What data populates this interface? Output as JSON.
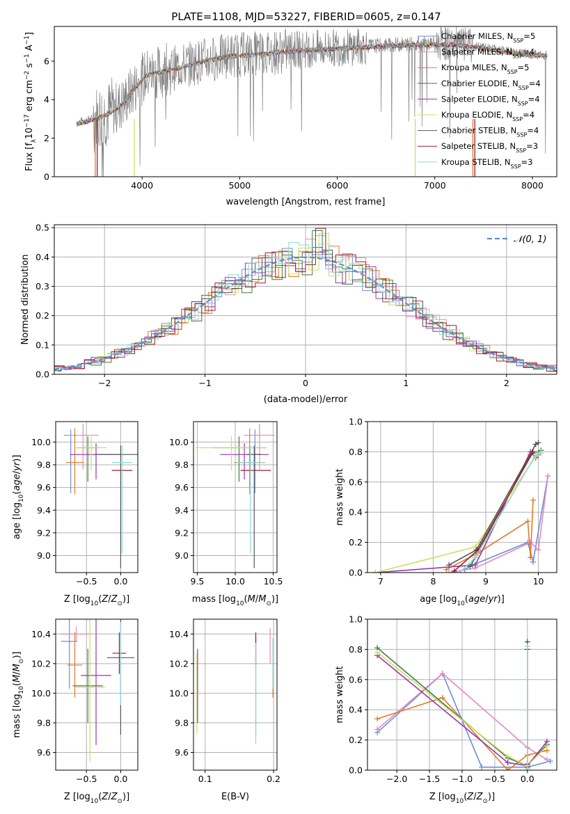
{
  "figure": {
    "title": "PLATE=1108, MJD=53227, FIBERID=0605, z=0.147"
  },
  "colors": {
    "cb_miles": "#6a8fdc",
    "sp_miles": "#e58ac0",
    "kr_miles": "#e07b2a",
    "cb_elodie": "#3f7a3f",
    "sp_elodie": "#9a35b0",
    "kr_elodie": "#c8e060",
    "cb_stelib": "#555555",
    "sp_stelib": "#9e1c2c",
    "kr_stelib": "#8fd8d8",
    "data_gray": "#7f7f7f",
    "gauss": "#5b8fd8",
    "grid": "#b0b0b0"
  },
  "chart_data": [
    {
      "id": "spectrum",
      "type": "line",
      "xlabel": "wavelength [Angstrom, rest frame]",
      "ylabel": "Flux [f$_\\lambda 10^{-17}$ erg cm$^{-2}$ s$^{-1}$ A$^{-1}$]",
      "xlim": [
        3100,
        8250
      ],
      "ylim": [
        0,
        7.8
      ],
      "xticks": [
        4000,
        5000,
        6000,
        7000,
        8000
      ],
      "yticks": [
        0,
        2,
        4,
        6
      ],
      "grid": false,
      "legend": {
        "placement": "top-right",
        "entries": [
          {
            "key": "cb_miles",
            "label": "Chabrier MILES, N",
            "sub": "SSP",
            "tail": "=5"
          },
          {
            "key": "sp_miles",
            "label": "Salpeter MILES, N",
            "sub": "SSP",
            "tail": "=4"
          },
          {
            "key": "kr_miles",
            "label": "Kroupa MILES, N",
            "sub": "SSP",
            "tail": "=5"
          },
          {
            "key": "cb_elodie",
            "label": "Chabrier ELODIE, N",
            "sub": "SSP",
            "tail": "=4"
          },
          {
            "key": "sp_elodie",
            "label": "Salpeter ELODIE, N",
            "sub": "SSP",
            "tail": "=4"
          },
          {
            "key": "kr_elodie",
            "label": "Kroupa ELODIE, N",
            "sub": "SSP",
            "tail": "=4"
          },
          {
            "key": "cb_stelib",
            "label": "Chabrier STELIB, N",
            "sub": "SSP",
            "tail": "=4"
          },
          {
            "key": "sp_stelib",
            "label": "Salpeter STELIB, N",
            "sub": "SSP",
            "tail": "=3"
          },
          {
            "key": "kr_stelib",
            "label": "Kroupa STELIB, N",
            "sub": "SSP",
            "tail": "=3"
          }
        ]
      },
      "continuum": [
        [
          3330,
          2.8
        ],
        [
          3500,
          3.0
        ],
        [
          3650,
          3.3
        ],
        [
          3800,
          3.8
        ],
        [
          3950,
          4.8
        ],
        [
          4050,
          5.3
        ],
        [
          4300,
          5.6
        ],
        [
          4600,
          6.0
        ],
        [
          4900,
          6.3
        ],
        [
          5200,
          6.4
        ],
        [
          5600,
          6.6
        ],
        [
          6000,
          6.7
        ],
        [
          6400,
          6.8
        ],
        [
          6800,
          6.9
        ],
        [
          7200,
          6.9
        ],
        [
          7500,
          6.7
        ],
        [
          7900,
          6.4
        ],
        [
          8150,
          6.3
        ]
      ],
      "noise_segments": [
        [
          3330,
          3500,
          0.25
        ],
        [
          3500,
          3700,
          1.8
        ],
        [
          3700,
          4300,
          1.4
        ],
        [
          4300,
          5500,
          1.2
        ],
        [
          5500,
          6300,
          1.0
        ],
        [
          6300,
          7000,
          0.4
        ],
        [
          7000,
          7400,
          0.9
        ],
        [
          7400,
          8150,
          0.25
        ]
      ]
    },
    {
      "id": "residuals",
      "type": "step",
      "xlabel": "(data-model)/error",
      "ylabel": "Normed distribution",
      "xlim": [
        -2.5,
        2.5
      ],
      "ylim": [
        0,
        0.51
      ],
      "xticks": [
        -2,
        -1,
        0,
        1,
        2
      ],
      "yticks": [
        0.0,
        0.1,
        0.2,
        0.3,
        0.4,
        0.5
      ],
      "grid": true,
      "legend": {
        "placement": "top-right",
        "entries": [
          {
            "label": "𝒩(0, 1)"
          }
        ]
      }
    },
    {
      "id": "age_vs_Z",
      "type": "scatter",
      "xlabel": "Z [log10(Z/Z☉)]",
      "ylabel": "age  [log10(age/yr)]",
      "xlim": [
        -0.95,
        0.25
      ],
      "ylim": [
        8.85,
        10.18
      ],
      "xticks": [
        -0.5,
        0.0
      ],
      "yticks": [
        9.0,
        9.2,
        9.4,
        9.6,
        9.8,
        10.0
      ],
      "grid": true,
      "points": [
        {
          "key": "cb_miles",
          "x": -0.73,
          "y": 10.06,
          "xerr": 0.1,
          "yerr": [
            0.51,
            0.05
          ]
        },
        {
          "key": "sp_miles",
          "x": -0.55,
          "y": 10.06,
          "xerr": 0.23,
          "yerr": [
            0.3,
            0.1
          ]
        },
        {
          "key": "kr_miles",
          "x": -0.67,
          "y": 9.82,
          "xerr": 0.13,
          "yerr": [
            0.28,
            0.3
          ]
        },
        {
          "key": "cb_elodie",
          "x": -0.48,
          "y": 9.95,
          "xerr": 0.17,
          "yerr": [
            0.3,
            0.1
          ]
        },
        {
          "key": "sp_elodie",
          "x": -0.36,
          "y": 9.89,
          "xerr": 0.38,
          "yerr": [
            0.22,
            0.1
          ]
        },
        {
          "key": "kr_elodie",
          "x": -0.43,
          "y": 9.95,
          "xerr": 0.22,
          "yerr": [
            0.2,
            0.1
          ]
        },
        {
          "key": "cb_stelib",
          "x": 0.0,
          "y": 9.89,
          "xerr": 0.38,
          "yerr": [
            1.0,
            0.08
          ]
        },
        {
          "key": "sp_stelib",
          "x": 0.02,
          "y": 9.75,
          "xerr": 0.15,
          "yerr": [
            0.0,
            0.0
          ]
        },
        {
          "key": "kr_stelib",
          "x": 0.02,
          "y": 9.82,
          "xerr": 0.15,
          "yerr": [
            0.8,
            0.15
          ]
        }
      ]
    },
    {
      "id": "age_vs_mass",
      "type": "scatter",
      "xlabel": "mass [log10(M/M☉)]",
      "ylabel": "",
      "xlim": [
        9.45,
        10.55
      ],
      "ylim": [
        8.85,
        10.18
      ],
      "xticks": [
        9.5,
        10.0,
        10.5
      ],
      "yticks": [
        9.0,
        9.2,
        9.4,
        9.6,
        9.8,
        10.0
      ],
      "grid": true,
      "points": [
        {
          "key": "cb_miles",
          "x": 10.26,
          "y": 10.06,
          "xerr": 0.14,
          "yerr": [
            0.51,
            0.05
          ]
        },
        {
          "key": "sp_miles",
          "x": 10.32,
          "y": 10.06,
          "xerr": 0.2,
          "yerr": [
            0.3,
            0.1
          ]
        },
        {
          "key": "kr_miles",
          "x": 10.19,
          "y": 9.82,
          "xerr": 0.2,
          "yerr": [
            0.28,
            0.3
          ]
        },
        {
          "key": "cb_elodie",
          "x": 10.05,
          "y": 9.95,
          "xerr": 0.35,
          "yerr": [
            0.3,
            0.1
          ]
        },
        {
          "key": "sp_elodie",
          "x": 10.12,
          "y": 9.89,
          "xerr": 0.32,
          "yerr": [
            0.22,
            0.1
          ]
        },
        {
          "key": "kr_elodie",
          "x": 9.95,
          "y": 9.95,
          "xerr": 0.47,
          "yerr": [
            0.2,
            0.1
          ]
        },
        {
          "key": "cb_stelib",
          "x": 10.25,
          "y": 9.89,
          "xerr": 0.1,
          "yerr": [
            1.0,
            0.08
          ]
        },
        {
          "key": "sp_stelib",
          "x": 10.27,
          "y": 9.75,
          "xerr": 0.2,
          "yerr": [
            0.0,
            0.0
          ]
        },
        {
          "key": "kr_stelib",
          "x": 10.2,
          "y": 9.82,
          "xerr": 0.18,
          "yerr": [
            0.8,
            0.15
          ]
        }
      ]
    },
    {
      "id": "weight_vs_age",
      "type": "line",
      "xlabel": "age  [log10(age/yr)]",
      "ylabel": "mass weight",
      "xlim": [
        6.75,
        10.35
      ],
      "ylim": [
        0,
        1.0
      ],
      "xticks": [
        7,
        8,
        9,
        10
      ],
      "yticks": [
        0.0,
        0.2,
        0.4,
        0.6,
        0.8,
        1.0
      ],
      "grid": true,
      "series": [
        {
          "key": "cb_miles",
          "x": [
            8.6,
            8.75,
            9.8,
            9.9,
            10.18
          ],
          "y": [
            0.02,
            0.05,
            0.2,
            0.07,
            0.64
          ]
        },
        {
          "key": "sp_miles",
          "x": [
            8.3,
            8.8,
            9.85,
            10.0,
            10.18
          ],
          "y": [
            0.0,
            0.03,
            0.2,
            0.15,
            0.64
          ]
        },
        {
          "key": "kr_miles",
          "x": [
            8.25,
            8.85,
            9.8,
            9.85,
            9.9
          ],
          "y": [
            0.02,
            0.13,
            0.34,
            0.1,
            0.48
          ]
        },
        {
          "key": "cb_elodie",
          "x": [
            8.7,
            8.8,
            9.85,
            10.05
          ],
          "y": [
            0.04,
            0.1,
            0.78,
            0.81
          ]
        },
        {
          "key": "sp_elodie",
          "x": [
            6.9,
            8.8,
            9.85,
            9.95,
            10.0
          ],
          "y": [
            0.0,
            0.05,
            0.8,
            0.76,
            0.78
          ]
        },
        {
          "key": "kr_elodie",
          "x": [
            6.9,
            8.8,
            9.95,
            10.05
          ],
          "y": [
            0.0,
            0.17,
            0.77,
            0.79
          ]
        },
        {
          "key": "cb_stelib",
          "x": [
            8.3,
            8.82,
            9.95,
            10.0
          ],
          "y": [
            0.05,
            0.15,
            0.85,
            0.86
          ]
        },
        {
          "key": "sp_stelib",
          "x": [
            8.4,
            8.85,
            9.9
          ],
          "y": [
            0.01,
            0.15,
            0.8
          ]
        },
        {
          "key": "kr_stelib",
          "x": [
            8.5,
            8.8,
            9.95,
            10.05
          ],
          "y": [
            0.0,
            0.1,
            0.78,
            0.8
          ]
        }
      ]
    },
    {
      "id": "mass_vs_Z",
      "type": "scatter",
      "xlabel": "Z [log10(Z/Z☉)]",
      "ylabel": "mass [log10(M/M☉)]",
      "xlim": [
        -0.95,
        0.25
      ],
      "ylim": [
        9.48,
        10.5
      ],
      "xticks": [
        -0.5,
        0.0
      ],
      "yticks": [
        9.6,
        9.8,
        10.0,
        10.2,
        10.4
      ],
      "grid": true,
      "points": [
        {
          "key": "cb_miles",
          "x": -0.75,
          "y": 10.35,
          "xerr": 0.12,
          "yerr": 0.32
        },
        {
          "key": "sp_miles",
          "x": -0.65,
          "y": 10.4,
          "xerr": 0.23,
          "yerr": 0.05
        },
        {
          "key": "kr_miles",
          "x": -0.67,
          "y": 10.19,
          "xerr": 0.11,
          "yerr": 0.22
        },
        {
          "key": "cb_elodie",
          "x": -0.48,
          "y": 10.05,
          "xerr": 0.22,
          "yerr": 0.25
        },
        {
          "key": "sp_elodie",
          "x": -0.36,
          "y": 10.12,
          "xerr": 0.22,
          "yerr": 0.47
        },
        {
          "key": "kr_elodie",
          "x": -0.45,
          "y": 10.04,
          "xerr": 0.22,
          "yerr": 0.5
        },
        {
          "key": "cb_stelib",
          "x": 0.0,
          "y": 10.24,
          "xerr": 0.2,
          "yerr": 0.52
        },
        {
          "key": "sp_stelib",
          "x": -0.02,
          "y": 10.27,
          "xerr": 0.1,
          "yerr": 0.14
        },
        {
          "key": "kr_stelib",
          "x": 0.0,
          "y": 10.2,
          "xerr": 0.12,
          "yerr": 0.28
        }
      ]
    },
    {
      "id": "mass_vs_ebv",
      "type": "scatter",
      "xlabel": "E(B-V)",
      "ylabel": "",
      "xlim": [
        0.083,
        0.205
      ],
      "ylim": [
        9.48,
        10.5
      ],
      "xticks": [
        0.1,
        0.2
      ],
      "yticks": [
        9.6,
        9.8,
        10.0,
        10.2,
        10.4
      ],
      "grid": true,
      "points": [
        {
          "key": "kr_elodie",
          "x": 0.088,
          "y": 10.0,
          "yerr": 0.27
        },
        {
          "key": "sp_elodie",
          "x": 0.089,
          "y": 10.05,
          "yerr": 0.25
        },
        {
          "key": "cb_stelib",
          "x": 0.174,
          "y": 10.05,
          "yerr": 0.34
        },
        {
          "key": "sp_stelib",
          "x": 0.174,
          "y": 10.3,
          "yerr": 0.11
        },
        {
          "key": "kr_stelib",
          "x": 0.174,
          "y": 10.0,
          "yerr": 0.34
        },
        {
          "key": "sp_miles",
          "x": 0.195,
          "y": 10.32,
          "yerr": 0.12
        },
        {
          "key": "kr_miles",
          "x": 0.199,
          "y": 10.1,
          "yerr": 0.13
        },
        {
          "key": "kr_stelib",
          "x": 0.199,
          "y": 10.2,
          "yerr": 0.17
        }
      ]
    },
    {
      "id": "weight_vs_Z",
      "type": "line",
      "xlabel": "Z [log10(Z/Z☉)]",
      "ylabel": "mass weight",
      "xlim": [
        -2.45,
        0.45
      ],
      "ylim": [
        0,
        1.0
      ],
      "xticks": [
        -2.0,
        -1.5,
        -1.0,
        -0.5,
        0.0
      ],
      "yticks": [
        0.0,
        0.2,
        0.4,
        0.6,
        0.8,
        1.0
      ],
      "grid": true,
      "series": [
        {
          "key": "cb_miles",
          "x": [
            -2.3,
            -1.3,
            -0.7,
            0.0,
            0.35
          ],
          "y": [
            0.25,
            0.64,
            0.02,
            0.02,
            0.06
          ]
        },
        {
          "key": "sp_miles",
          "x": [
            -2.3,
            -1.3,
            0.0,
            0.3
          ],
          "y": [
            0.27,
            0.64,
            0.15,
            0.07
          ]
        },
        {
          "key": "kr_miles",
          "x": [
            -2.3,
            -1.3,
            -0.3,
            0.0,
            0.3
          ],
          "y": [
            0.34,
            0.48,
            0.0,
            0.1,
            0.13
          ]
        },
        {
          "key": "cb_elodie",
          "x": [
            -2.3,
            -0.3,
            0.0,
            0.3
          ],
          "y": [
            0.81,
            0.08,
            0.03,
            0.17
          ]
        },
        {
          "key": "sp_elodie",
          "x": [
            -2.3,
            -0.3,
            0.0,
            0.3
          ],
          "y": [
            0.76,
            0.05,
            0.03,
            0.19
          ]
        },
        {
          "key": "kr_elodie",
          "x": [
            -2.3,
            -0.3,
            0.0,
            0.3
          ],
          "y": [
            0.78,
            0.09,
            0.03,
            0.16
          ]
        },
        {
          "key": "cb_stelib",
          "x": [
            0.0,
            0.0
          ],
          "y": [
            0.85,
            0.02
          ]
        },
        {
          "key": "sp_stelib",
          "x": [
            0.0,
            0.0
          ],
          "y": [
            0.8,
            0.04
          ]
        },
        {
          "key": "kr_stelib",
          "x": [
            0.0,
            0.0
          ],
          "y": [
            0.82,
            0.01
          ]
        }
      ]
    }
  ]
}
